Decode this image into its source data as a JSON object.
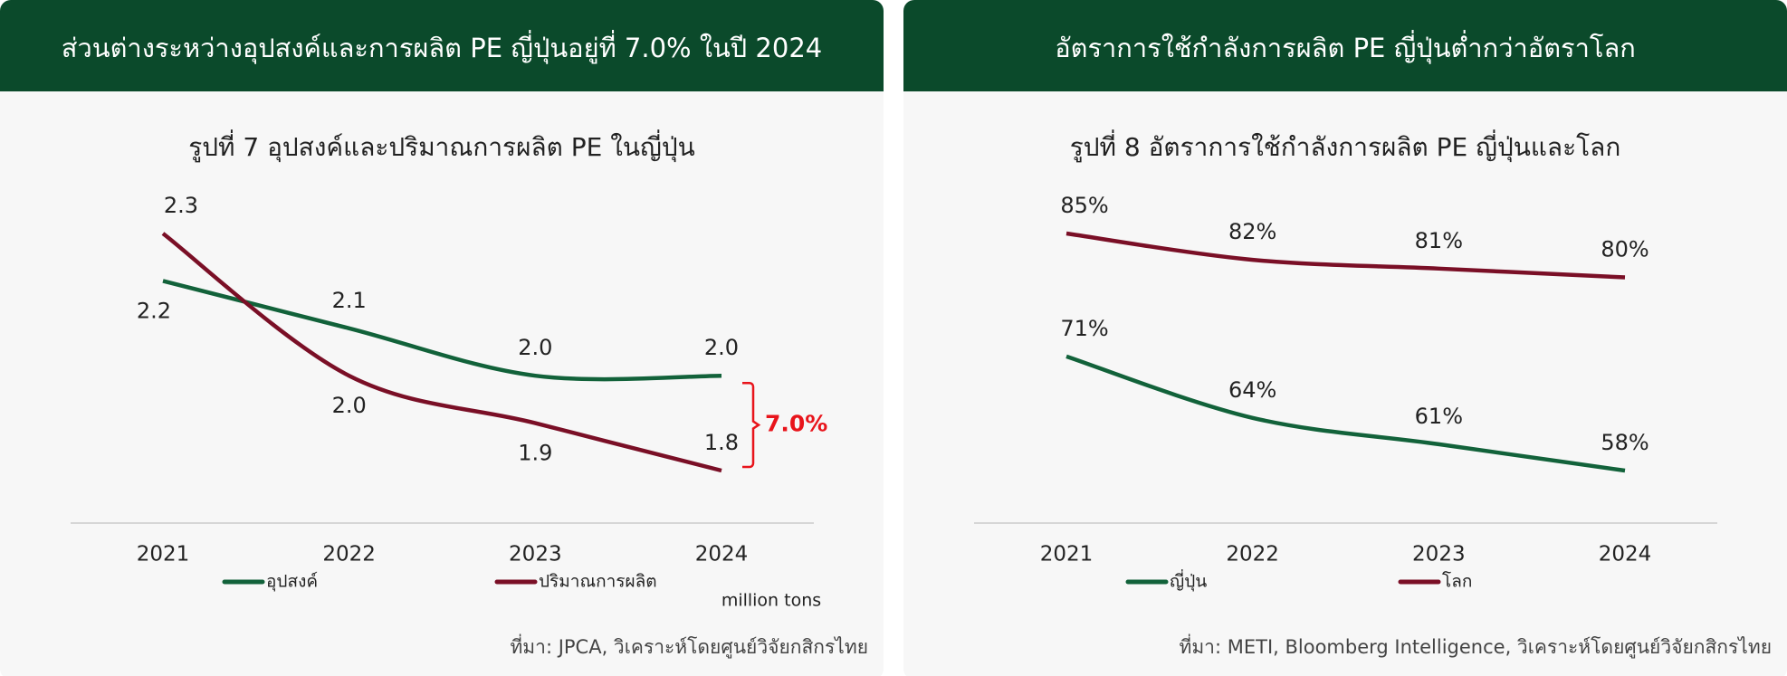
{
  "chart_data": [
    {
      "type": "line",
      "header": "ส่วนต่างระหว่างอุปสงค์และการผลิต PE ญี่ปุ่นอยู่ที่ 7.0% ในปี 2024",
      "title": "รูปที่ 7 อุปสงค์และปริมาณการผลิต PE ในญี่ปุ่น",
      "categories": [
        "2021",
        "2022",
        "2023",
        "2024"
      ],
      "series": [
        {
          "name": "อุปสงค์",
          "color": "#12623a",
          "values": [
            2.2,
            2.1,
            2.0,
            2.0
          ],
          "value_labels": [
            "2.2",
            "2.1",
            "2.0",
            "2.0"
          ]
        },
        {
          "name": "ปริมาณการผลิต",
          "color": "#7a0f26",
          "values": [
            2.3,
            2.0,
            1.9,
            1.8
          ],
          "value_labels": [
            "2.3",
            "2.0",
            "1.9",
            "1.8"
          ]
        }
      ],
      "annotation": "7.0%",
      "annotation_color": "#e8141b",
      "unit": "million tons",
      "source": "ที่มา: JPCA, วิเคราะห์โดยศูนย์วิจัยกสิกรไทย"
    },
    {
      "type": "line",
      "header": "อัตราการใช้กำลังการผลิต PE ญี่ปุ่นต่ำกว่าอัตราโลก",
      "title": "รูปที่ 8 อัตราการใช้กำลังการผลิต PE ญี่ปุ่นและโลก",
      "categories": [
        "2021",
        "2022",
        "2023",
        "2024"
      ],
      "series": [
        {
          "name": "ญี่ปุ่น",
          "color": "#12623a",
          "values": [
            71,
            64,
            61,
            58
          ],
          "value_labels": [
            "71%",
            "64%",
            "61%",
            "58%"
          ]
        },
        {
          "name": "โลก",
          "color": "#7a0f26",
          "values": [
            85,
            82,
            81,
            80
          ],
          "value_labels": [
            "85%",
            "82%",
            "81%",
            "80%"
          ]
        }
      ],
      "source": "ที่มา: METI, Bloomberg Intelligence, วิเคราะห์โดยศูนย์วิจัยกสิกรไทย"
    }
  ]
}
